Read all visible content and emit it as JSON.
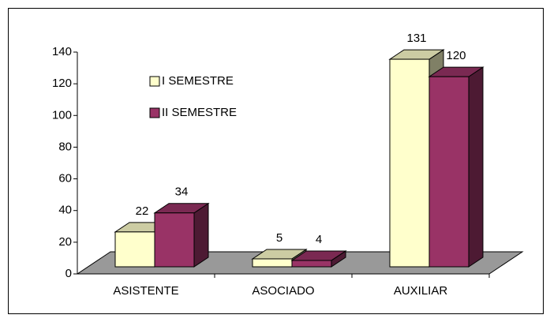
{
  "chart_data": {
    "type": "bar3d",
    "categories": [
      "ASISTENTE",
      "ASOCIADO",
      "AUXILIAR"
    ],
    "series": [
      {
        "name": "I SEMESTRE",
        "color": "#ffffcc",
        "values": [
          22,
          5,
          131
        ]
      },
      {
        "name": "II SEMESTRE",
        "color": "#993366",
        "values": [
          34,
          4,
          120
        ]
      }
    ],
    "ylim": [
      0,
      140
    ],
    "yticks": [
      0,
      20,
      40,
      60,
      80,
      100,
      120,
      140
    ],
    "legend": "upper-left"
  }
}
